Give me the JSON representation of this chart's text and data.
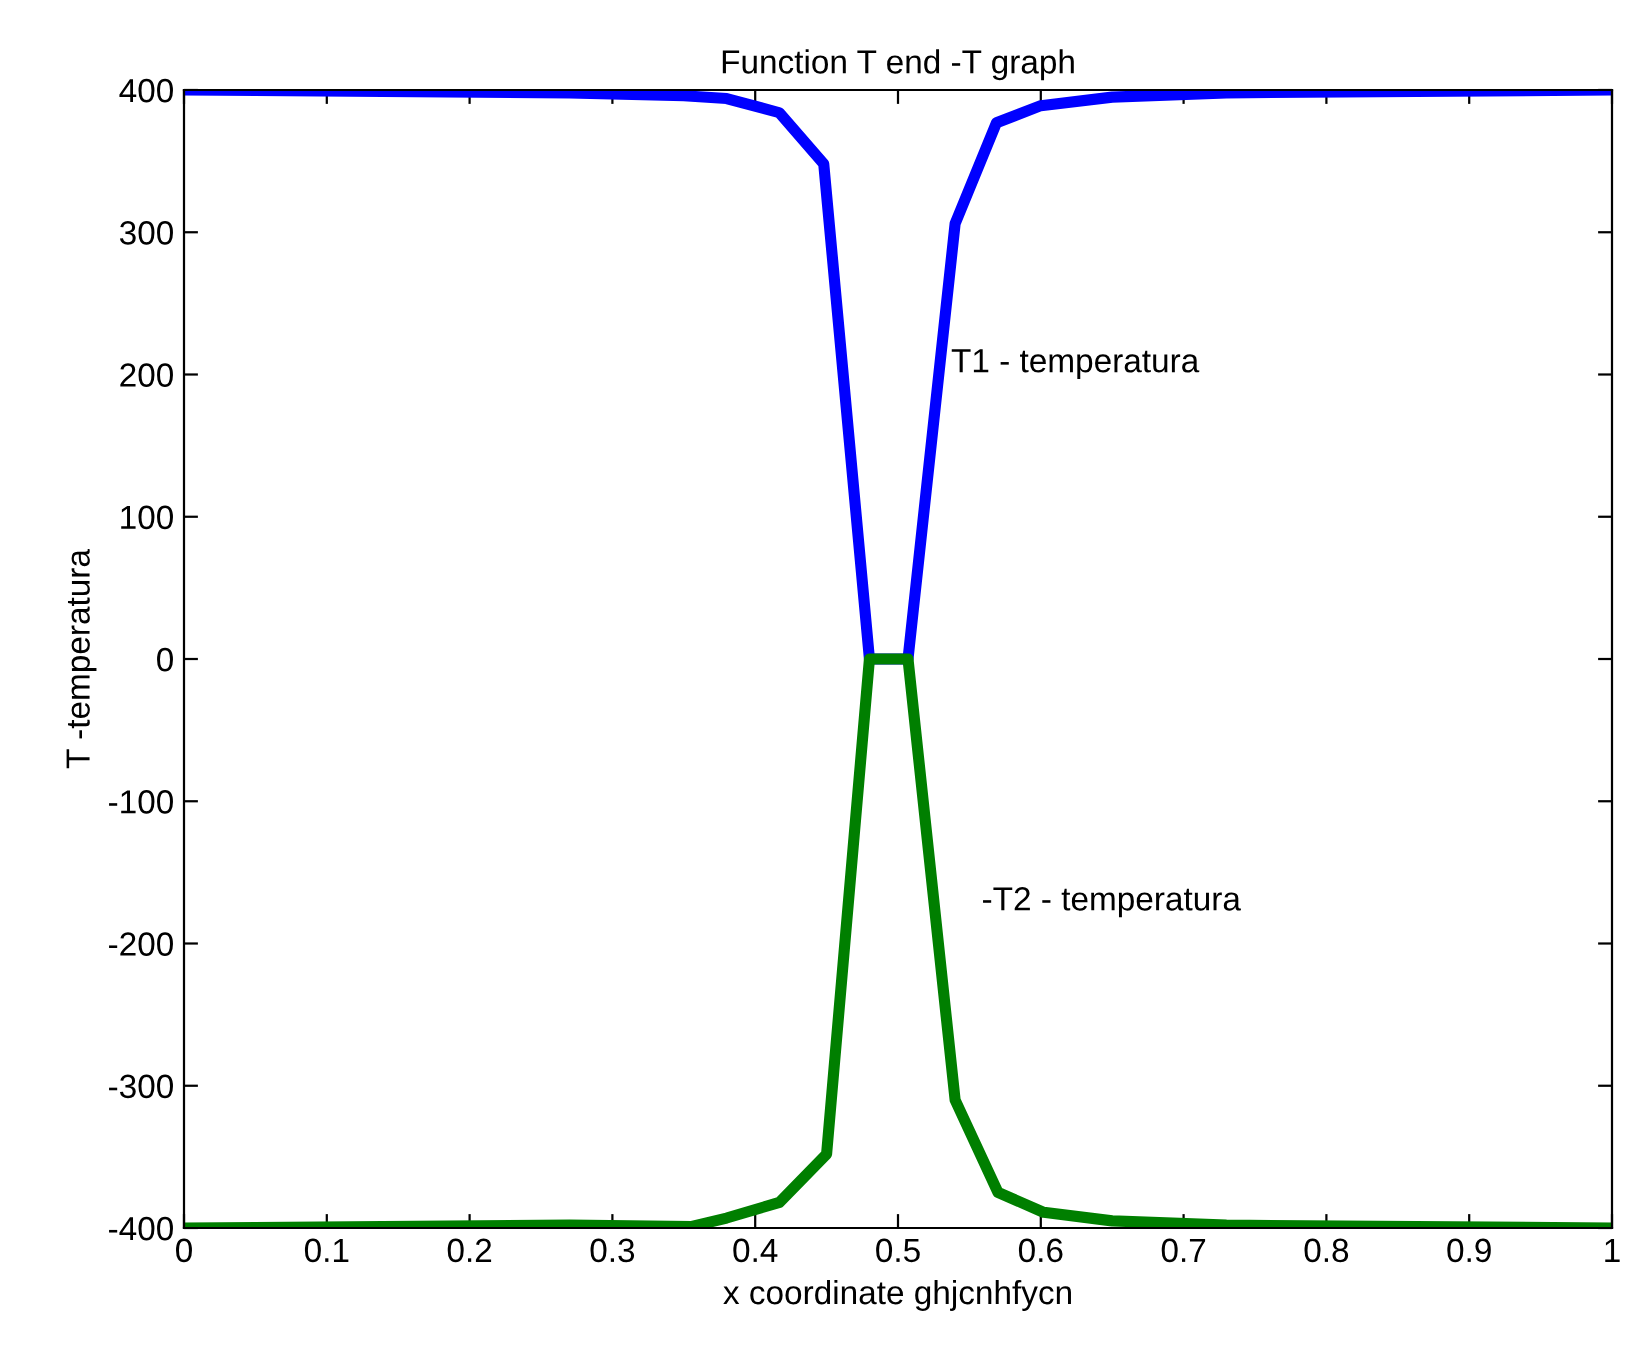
{
  "chart_data": {
    "type": "line",
    "title": "Function T end -T graph",
    "xlabel": "x coordinate ghjcnhfycn",
    "ylabel": "T -temperatura",
    "series": [
      {
        "name": "T1 - temperatura",
        "color": "#0000ff",
        "x": [
          0,
          0.27,
          0.35,
          0.38,
          0.417,
          0.448,
          0.48,
          0.507,
          0.54,
          0.569,
          0.6,
          0.65,
          0.73,
          1
        ],
        "values": [
          400,
          398,
          396,
          394,
          384,
          348,
          0,
          0,
          306,
          377,
          389,
          395,
          398,
          400
        ]
      },
      {
        "name": "-T2 - temperatura",
        "color": "#007f00",
        "x": [
          0,
          0.27,
          0.355,
          0.38,
          0.417,
          0.45,
          0.48,
          0.507,
          0.54,
          0.57,
          0.602,
          0.65,
          0.73,
          1
        ],
        "values": [
          -400,
          -398,
          -399,
          -393,
          -382,
          -348,
          0,
          0,
          -310,
          -375,
          -389,
          -395,
          -398,
          -400
        ]
      }
    ],
    "xlim": [
      0,
      1
    ],
    "ylim": [
      -400,
      400
    ],
    "xticks": [
      0,
      0.1,
      0.2,
      0.3,
      0.4,
      0.5,
      0.6,
      0.7,
      0.8,
      0.9,
      1
    ],
    "yticks": [
      -400,
      -300,
      -200,
      -100,
      0,
      100,
      200,
      300,
      400
    ],
    "grid": false,
    "marker": "none",
    "line_style": "solid"
  }
}
